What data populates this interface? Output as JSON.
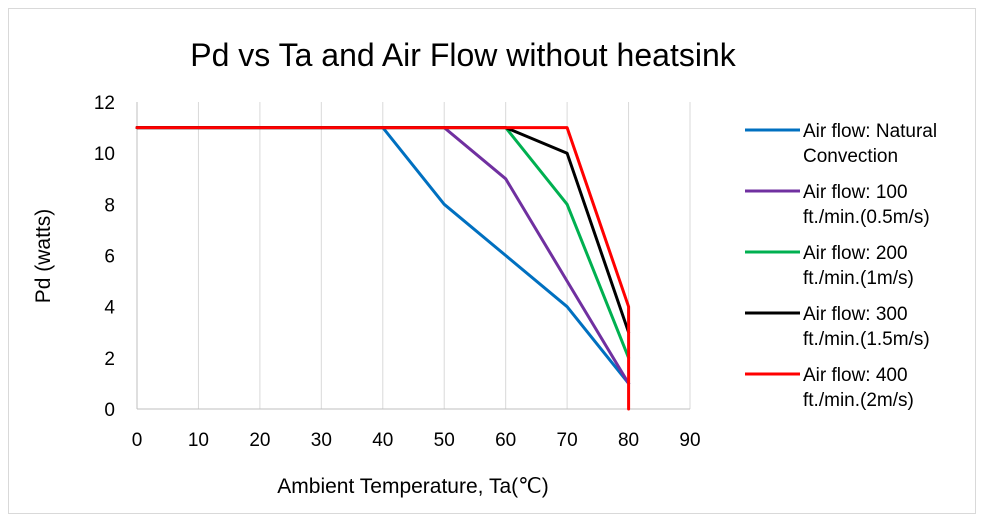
{
  "chart_data": {
    "type": "line",
    "title": "Pd vs Ta and Air Flow without heatsink",
    "xlabel": "Ambient Temperature, Ta(℃)",
    "ylabel": "Pd (watts)",
    "xlim": [
      0,
      90
    ],
    "ylim": [
      0,
      12
    ],
    "x_ticks": [
      "0",
      "10",
      "20",
      "30",
      "40",
      "50",
      "60",
      "70",
      "80",
      "90"
    ],
    "y_ticks": [
      "0",
      "2",
      "4",
      "6",
      "8",
      "10",
      "12"
    ],
    "grid": "vertical",
    "legend_position": "right",
    "series": [
      {
        "name": "Air flow: Natural Convection",
        "label_lines": [
          "Air flow: Natural",
          "Convection"
        ],
        "color": "#0070c0",
        "points": [
          [
            0,
            11
          ],
          [
            40,
            11
          ],
          [
            50,
            8
          ],
          [
            60,
            6
          ],
          [
            70,
            4
          ],
          [
            80,
            1
          ]
        ]
      },
      {
        "name": "Air flow: 100 ft./min.(0.5m/s)",
        "label_lines": [
          "Air flow: 100",
          "ft./min.(0.5m/s)"
        ],
        "color": "#7030a0",
        "points": [
          [
            0,
            11
          ],
          [
            50,
            11
          ],
          [
            60,
            9
          ],
          [
            70,
            5
          ],
          [
            80,
            1
          ]
        ]
      },
      {
        "name": "Air flow: 200 ft./min.(1m/s)",
        "label_lines": [
          "Air flow: 200",
          "ft./min.(1m/s)"
        ],
        "color": "#00b050",
        "points": [
          [
            0,
            11
          ],
          [
            60,
            11
          ],
          [
            70,
            8
          ],
          [
            80,
            2
          ]
        ]
      },
      {
        "name": "Air flow: 300 ft./min.(1.5m/s)",
        "label_lines": [
          "Air flow: 300",
          "ft./min.(1.5m/s)"
        ],
        "color": "#000000",
        "points": [
          [
            0,
            11
          ],
          [
            60,
            11
          ],
          [
            70,
            10
          ],
          [
            80,
            3
          ]
        ]
      },
      {
        "name": "Air flow: 400 ft./min.(2m/s)",
        "label_lines": [
          "Air flow: 400",
          "ft./min.(2m/s)"
        ],
        "color": "#ff0000",
        "points": [
          [
            0,
            11
          ],
          [
            70,
            11
          ],
          [
            80,
            4
          ],
          [
            80,
            0
          ]
        ]
      }
    ]
  }
}
